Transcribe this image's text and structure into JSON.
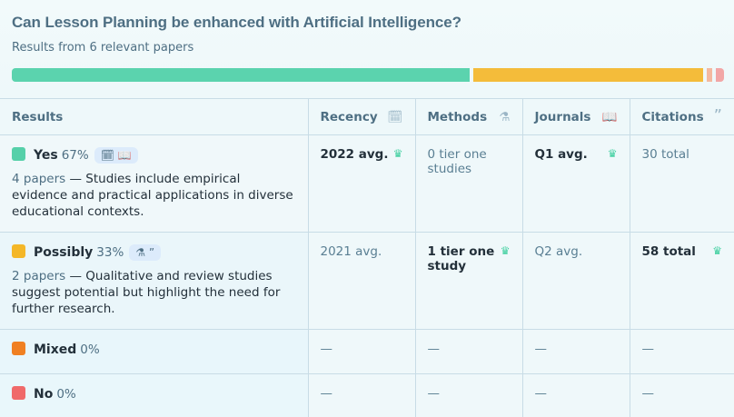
{
  "header": {
    "title": "Can Lesson Planning be enhanced with Artificial Intelligence?",
    "subtitle": "Results from 6 relevant papers"
  },
  "distribution": [
    {
      "label": "Yes",
      "percent": 67,
      "color": "#5bd3ae"
    },
    {
      "label": "Possibly",
      "percent": 33,
      "color": "#f4bc3a"
    },
    {
      "label": "Mixed",
      "percent": 0,
      "color": "#f4b9a0"
    },
    {
      "label": "No",
      "percent": 0,
      "color": "#f2a6a6"
    }
  ],
  "columns": [
    {
      "label": "Results"
    },
    {
      "label": "Recency",
      "icon": "calendar-icon"
    },
    {
      "label": "Methods",
      "icon": "flask-icon"
    },
    {
      "label": "Journals",
      "icon": "book-icon"
    },
    {
      "label": "Citations",
      "icon": "quote-icon"
    }
  ],
  "rows": [
    {
      "label": "Yes",
      "pct": "67%",
      "color": "#56d0a9",
      "chips": [
        "calendar-icon",
        "book-icon"
      ],
      "papers": "4 papers",
      "desc": " — Studies include empirical evidence and practical applications in diverse educational contexts.",
      "recency": "2022 avg.",
      "methods": "0 tier one studies",
      "journals": "Q1 avg.",
      "citations": "30 total"
    },
    {
      "label": "Possibly",
      "pct": "33%",
      "color": "#f4b728",
      "chips": [
        "flask-icon",
        "quote-icon"
      ],
      "papers": "2 papers",
      "desc": " — Qualitative and review studies suggest potential but highlight the need for further research.",
      "recency": "2021 avg.",
      "methods": "1 tier one study",
      "journals": "Q2 avg.",
      "citations": "58 total"
    },
    {
      "label": "Mixed",
      "pct": "0%",
      "color": "#f08022",
      "recency": "—",
      "methods": "—",
      "journals": "—",
      "citations": "—"
    },
    {
      "label": "No",
      "pct": "0%",
      "color": "#f06a6a",
      "recency": "—",
      "methods": "—",
      "journals": "—",
      "citations": "—"
    }
  ]
}
